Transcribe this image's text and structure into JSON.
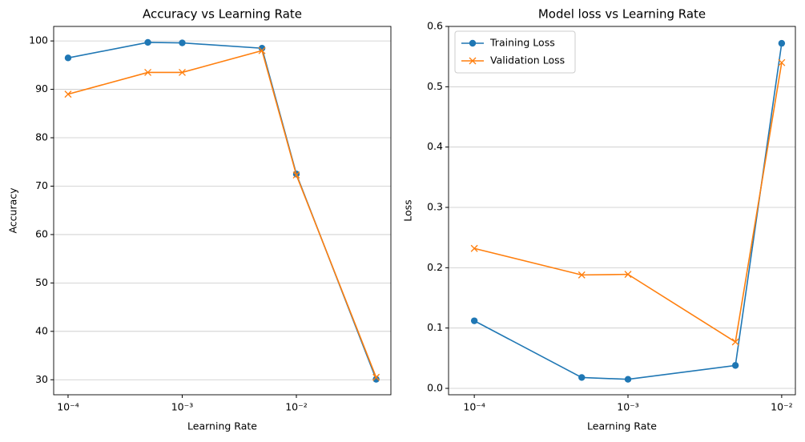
{
  "chart_data": [
    {
      "type": "line",
      "title": "Accuracy vs Learning Rate",
      "xlabel": "Learning Rate",
      "ylabel": "Accuracy",
      "xscale": "log",
      "x": [
        0.0001,
        0.0005,
        0.001,
        0.005,
        0.01,
        0.05
      ],
      "series": [
        {
          "color": "#1f77b4",
          "marker": "o",
          "values": [
            96.5,
            99.7,
            99.6,
            98.5,
            72.5,
            30.1
          ]
        },
        {
          "color": "#ff7f0e",
          "marker": "x",
          "values": [
            89.0,
            93.5,
            93.5,
            98.0,
            72.3,
            30.5
          ]
        }
      ],
      "xlim": [
        7.48e-05,
        0.0673
      ],
      "xticks": [
        {
          "value": 0.0001,
          "label": "10⁻⁴"
        },
        {
          "value": 0.001,
          "label": "10⁻³"
        },
        {
          "value": 0.01,
          "label": "10⁻²"
        }
      ],
      "ylim": [
        26.9,
        103.0
      ],
      "yticks": [
        30,
        40,
        50,
        60,
        70,
        80,
        90,
        100
      ],
      "grid": "y"
    },
    {
      "type": "line",
      "title": "Model loss vs Learning Rate",
      "xlabel": "Learning Rate",
      "ylabel": "Loss",
      "xscale": "log",
      "x": [
        0.0001,
        0.0005,
        0.001,
        0.005,
        0.01
      ],
      "series": [
        {
          "name": "Training Loss",
          "color": "#1f77b4",
          "marker": "o",
          "values": [
            0.112,
            0.018,
            0.015,
            0.038,
            0.572
          ]
        },
        {
          "name": "Validation Loss",
          "color": "#ff7f0e",
          "marker": "x",
          "values": [
            0.232,
            0.188,
            0.189,
            0.077,
            0.54
          ]
        }
      ],
      "xlim": [
        6.8e-05,
        0.01228
      ],
      "xticks": [
        {
          "value": 0.0001,
          "label": "10⁻⁴"
        },
        {
          "value": 0.001,
          "label": "10⁻³"
        },
        {
          "value": 0.01,
          "label": "10⁻²"
        }
      ],
      "ylim": [
        -0.0106,
        0.6
      ],
      "yticks": [
        {
          "value": 0,
          "label": "0.0"
        },
        {
          "value": 0.1,
          "label": "0.1"
        },
        {
          "value": 0.2,
          "label": "0.2"
        },
        {
          "value": 0.3,
          "label": "0.3"
        },
        {
          "value": 0.4,
          "label": "0.4"
        },
        {
          "value": 0.5,
          "label": "0.5"
        },
        {
          "value": 0.6,
          "label": "0.6"
        }
      ],
      "grid": "y",
      "legend": "upper left"
    }
  ]
}
